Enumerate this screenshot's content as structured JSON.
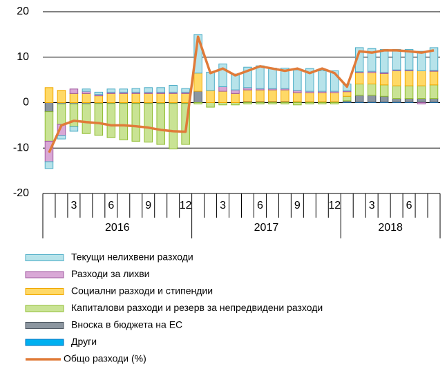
{
  "chart_data": {
    "type": "bar",
    "stacked": true,
    "categories": [
      null,
      null,
      "3",
      null,
      null,
      "6",
      null,
      null,
      "9",
      null,
      null,
      "12",
      null,
      null,
      "3",
      null,
      null,
      "6",
      null,
      null,
      "9",
      null,
      null,
      "12",
      null,
      null,
      "3",
      null,
      null,
      "6",
      null,
      null
    ],
    "years": [
      "2016",
      "2017",
      "2018"
    ],
    "ylim": [
      -20,
      20
    ],
    "yticks": [
      -20,
      -10,
      0,
      10,
      20
    ],
    "grid": true,
    "series": [
      {
        "name": "Текущи нелихвени разходи",
        "color": "#b7e3ea",
        "stroke": "#4bacc6",
        "values": [
          -1.5,
          -0.7,
          -1,
          0.5,
          0.5,
          0.7,
          0.7,
          0.8,
          1,
          1,
          1.5,
          0.8,
          8.5,
          4,
          5,
          3.5,
          4.5,
          5,
          4.5,
          4.5,
          4.5,
          5,
          4.5,
          4.5,
          1.5,
          5.3,
          5,
          5,
          4.5,
          4.5,
          4.3,
          5
        ]
      },
      {
        "name": "Разходи за лихви",
        "color": "#d9a8d6",
        "stroke": "#a05aa0",
        "values": [
          -4.5,
          -2.5,
          1,
          0.5,
          0.3,
          0.3,
          0.3,
          0.3,
          0.3,
          0.3,
          0.3,
          0.3,
          0,
          0,
          1,
          0.8,
          0.5,
          0.3,
          0.3,
          0.3,
          0.5,
          0.3,
          0.3,
          0.3,
          0.2,
          0.2,
          0.3,
          0.3,
          0.2,
          0.2,
          -0.3,
          0.2
        ]
      },
      {
        "name": "Социални разходи и стипендии",
        "color": "#ffd966",
        "stroke": "#f0a800",
        "values": [
          3.3,
          2.7,
          2,
          2,
          1.5,
          2,
          2,
          2,
          2,
          2,
          2,
          2,
          4,
          2.7,
          2.5,
          2,
          2.5,
          2.5,
          2.5,
          2.5,
          2,
          2,
          2,
          2,
          1,
          2.5,
          2.5,
          2.5,
          3.3,
          3.3,
          3.3,
          3
        ]
      },
      {
        "name": "Капиталови разходи и резерв за непредвидени разходи",
        "color": "#c9e394",
        "stroke": "#8fbc2f",
        "values": [
          -6.5,
          -4.5,
          -5,
          -6.5,
          -7,
          -7.5,
          -8,
          -8.3,
          -8.5,
          -9,
          -10,
          -9,
          -0.3,
          -1,
          -0.5,
          -0.5,
          -0.3,
          -0.3,
          -0.3,
          -0.3,
          -0.5,
          -0.3,
          -0.3,
          -0.3,
          1,
          2.5,
          2.5,
          2.5,
          2.8,
          2.8,
          2.8,
          3
        ]
      },
      {
        "name": "Вноска в бюджета на ЕС",
        "color": "#8c96a0",
        "stroke": "#505a64",
        "values": [
          -2,
          -0.3,
          -0.3,
          -0.3,
          -0.2,
          -0.2,
          -0.2,
          -0.2,
          -0.2,
          -0.2,
          -0.2,
          -0.2,
          2.5,
          0,
          0,
          0,
          0.3,
          0.3,
          0.3,
          0.3,
          0.2,
          0.2,
          0.2,
          0.2,
          0.3,
          1.5,
          1.5,
          1.3,
          0.8,
          0.8,
          0.8,
          0.8
        ]
      },
      {
        "name": "Други",
        "color": "#00b0f0",
        "stroke": "#0070c0",
        "values": [
          0,
          0,
          0,
          0,
          0,
          0,
          0,
          0,
          0,
          0,
          0,
          0,
          0,
          0,
          0,
          0,
          0,
          0,
          0,
          0,
          0,
          0,
          0,
          0,
          0.1,
          0.1,
          0.1,
          0.1,
          0.1,
          0.1,
          0.1,
          0.1
        ]
      }
    ],
    "line": {
      "name": "Общо разходи (%)",
      "color": "#e07b39",
      "values": [
        -11,
        -5,
        -4,
        -4.3,
        -4.5,
        -5,
        -5,
        -5.2,
        -5.5,
        -6,
        -6.3,
        -6.4,
        14.5,
        6.5,
        7.5,
        6,
        7,
        8,
        7.5,
        7,
        7.5,
        6.5,
        7.5,
        6.5,
        3.5,
        11.3,
        11,
        11.5,
        11.5,
        11.3,
        11,
        11.5
      ]
    }
  }
}
